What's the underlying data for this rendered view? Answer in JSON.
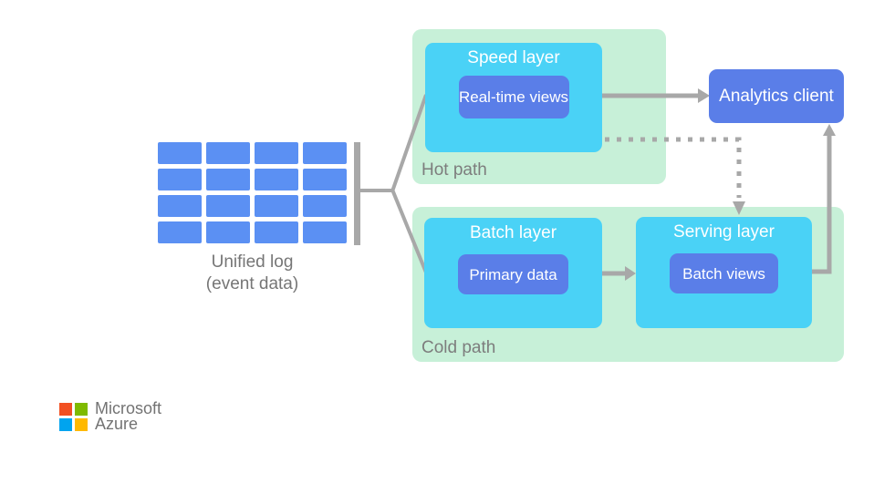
{
  "colors": {
    "path_bg": "#c7f0d8",
    "layer_bg": "#4ad2f6",
    "node_blue": "#5a7ee8",
    "grid_blue": "#5b90f3",
    "connector_gray": "#a8a8a8",
    "path_label_gray": "#7d7d7d",
    "log_label_gray": "#767676",
    "logo_text_gray": "#737373",
    "ms_red": "#f25022",
    "ms_green": "#7fba00",
    "ms_blue": "#00a4ef",
    "ms_yellow": "#ffb900"
  },
  "diagram": {
    "unified_log": {
      "rows": 4,
      "columns": 4,
      "label_line1": "Unified log",
      "label_line2": "(event data)"
    },
    "hot_path": {
      "label": "Hot path",
      "speed_layer": {
        "title": "Speed layer",
        "node": "Real-time views"
      }
    },
    "cold_path": {
      "label": "Cold path",
      "batch_layer": {
        "title": "Batch layer",
        "node": "Primary data"
      },
      "serving_layer": {
        "title": "Serving layer",
        "node": "Batch views"
      }
    },
    "analytics_client": {
      "label": "Analytics client"
    }
  },
  "branding": {
    "company": "Microsoft",
    "product": "Azure"
  }
}
